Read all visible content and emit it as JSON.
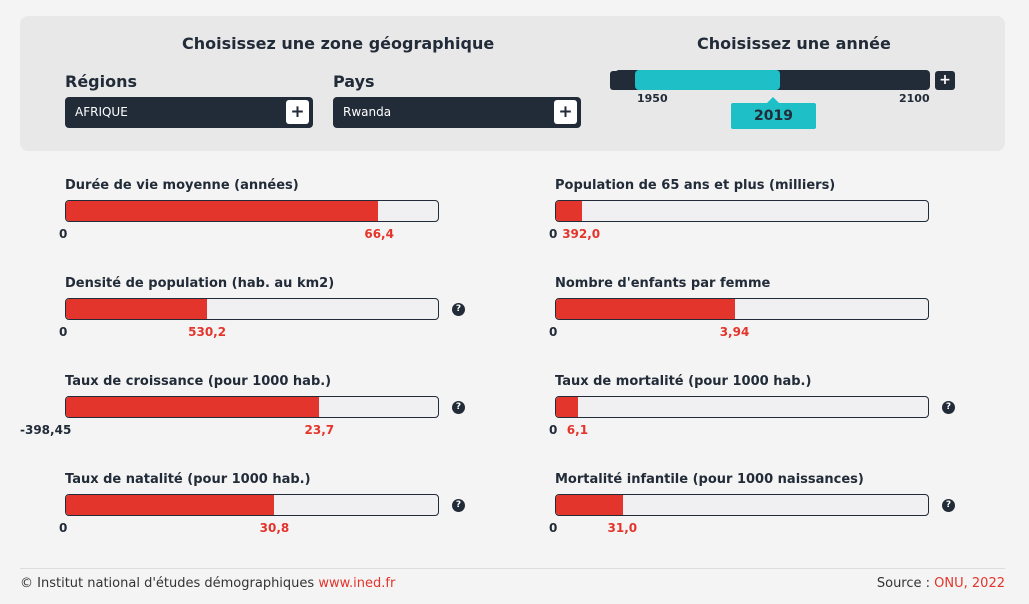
{
  "header": {
    "zone_title": "Choisissez une zone géographique",
    "year_title": "Choisissez une année"
  },
  "regions": {
    "label": "Régions",
    "value": "AFRIQUE",
    "button": "+"
  },
  "pays": {
    "label": "Pays",
    "value": "Rwanda",
    "button": "+"
  },
  "year": {
    "minus": "-",
    "plus": "+",
    "min": "1950",
    "max": "2100",
    "value": "2019",
    "position_fraction": 0.46
  },
  "indicators": [
    {
      "label": "Durée de vie moyenne (années)",
      "min": "0",
      "value": "66,4",
      "fill_fraction": 0.84,
      "help": ""
    },
    {
      "label": "Population de 65 ans et plus (milliers)",
      "min": "0",
      "value": "392,0",
      "fill_fraction": 0.07,
      "help": ""
    },
    {
      "label": "Densité de population (hab. au km2)",
      "min": "0",
      "value": "530,2",
      "fill_fraction": 0.38,
      "help": "?"
    },
    {
      "label": "Nombre d'enfants par femme",
      "min": "0",
      "value": "3,94",
      "fill_fraction": 0.48,
      "help": ""
    },
    {
      "label": "Taux de croissance (pour 1000 hab.)",
      "min": "-398,45",
      "value": "23,7",
      "fill_fraction": 0.68,
      "help": "?"
    },
    {
      "label": "Taux de mortalité (pour 1000 hab.)",
      "min": "0",
      "value": "6,1",
      "fill_fraction": 0.06,
      "help": "?"
    },
    {
      "label": "Taux de natalité (pour 1000 hab.)",
      "min": "0",
      "value": "30,8",
      "fill_fraction": 0.56,
      "help": "?"
    },
    {
      "label": "Mortalité infantile (pour 1000 naissances)",
      "min": "0",
      "value": "31,0",
      "fill_fraction": 0.18,
      "help": "?"
    }
  ],
  "footer": {
    "copyright": "© Institut national d'études démographiques ",
    "site": "www.ined.fr",
    "source_label": "Source : ",
    "source_org": "ONU",
    "source_year": ", 2022"
  },
  "colors": {
    "dark": "#222b38",
    "accent": "#1ebfc7",
    "bar": "#e3352c"
  }
}
